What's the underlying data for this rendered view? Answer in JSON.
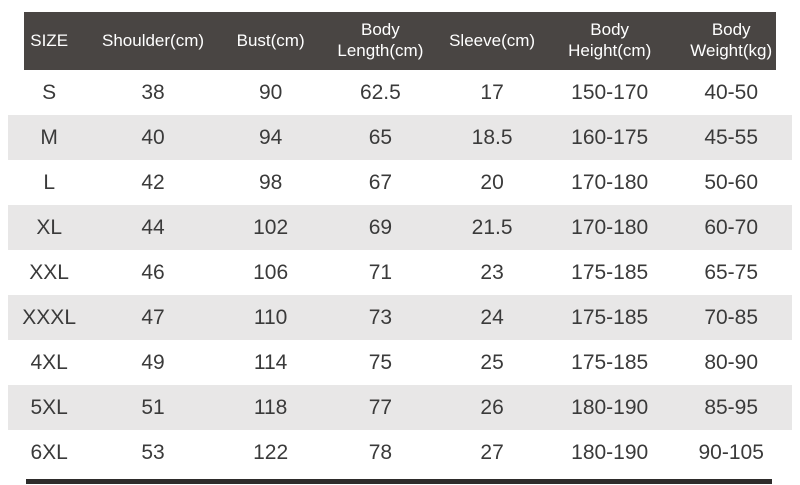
{
  "colors": {
    "header_bg": "#494543",
    "header_text": "#ffffff",
    "stripe_bg": "#e8e7e7",
    "body_text": "#3a3a3a",
    "page_bg": "#ffffff",
    "bottom_rule": "#2e2c2b"
  },
  "table": {
    "headers": [
      "SIZE",
      "Shoulder(cm)",
      "Bust(cm)",
      "Body Length(cm)",
      "Sleeve(cm)",
      "Body Height(cm)",
      "Body Weight(kg)"
    ],
    "rows": [
      [
        "S",
        "38",
        "90",
        "62.5",
        "17",
        "150-170",
        "40-50"
      ],
      [
        "M",
        "40",
        "94",
        "65",
        "18.5",
        "160-175",
        "45-55"
      ],
      [
        "L",
        "42",
        "98",
        "67",
        "20",
        "170-180",
        "50-60"
      ],
      [
        "XL",
        "44",
        "102",
        "69",
        "21.5",
        "170-180",
        "60-70"
      ],
      [
        "XXL",
        "46",
        "106",
        "71",
        "23",
        "175-185",
        "65-75"
      ],
      [
        "XXXL",
        "47",
        "110",
        "73",
        "24",
        "175-185",
        "70-85"
      ],
      [
        "4XL",
        "49",
        "114",
        "75",
        "25",
        "175-185",
        "80-90"
      ],
      [
        "5XL",
        "51",
        "118",
        "77",
        "26",
        "180-190",
        "85-95"
      ],
      [
        "6XL",
        "53",
        "122",
        "78",
        "27",
        "180-190",
        "90-105"
      ]
    ]
  },
  "chart_data": {
    "type": "table",
    "title": "Garment size chart",
    "columns": [
      "SIZE",
      "Shoulder(cm)",
      "Bust(cm)",
      "Body Length(cm)",
      "Sleeve(cm)",
      "Body Height(cm)",
      "Body Weight(kg)"
    ],
    "rows": [
      [
        "S",
        38,
        90,
        62.5,
        17,
        "150-170",
        "40-50"
      ],
      [
        "M",
        40,
        94,
        65,
        18.5,
        "160-175",
        "45-55"
      ],
      [
        "L",
        42,
        98,
        67,
        20,
        "170-180",
        "50-60"
      ],
      [
        "XL",
        44,
        102,
        69,
        21.5,
        "170-180",
        "60-70"
      ],
      [
        "XXL",
        46,
        106,
        71,
        23,
        "175-185",
        "65-75"
      ],
      [
        "XXXL",
        47,
        110,
        73,
        24,
        "175-185",
        "70-85"
      ],
      [
        "4XL",
        49,
        114,
        75,
        25,
        "175-185",
        "80-90"
      ],
      [
        "5XL",
        51,
        118,
        77,
        26,
        "180-190",
        "85-95"
      ],
      [
        "6XL",
        53,
        122,
        78,
        27,
        "180-190",
        "90-105"
      ]
    ],
    "layout": {
      "header_style": "dark-bar",
      "row_striping": "alternate even rows light gray",
      "grid": false
    }
  }
}
